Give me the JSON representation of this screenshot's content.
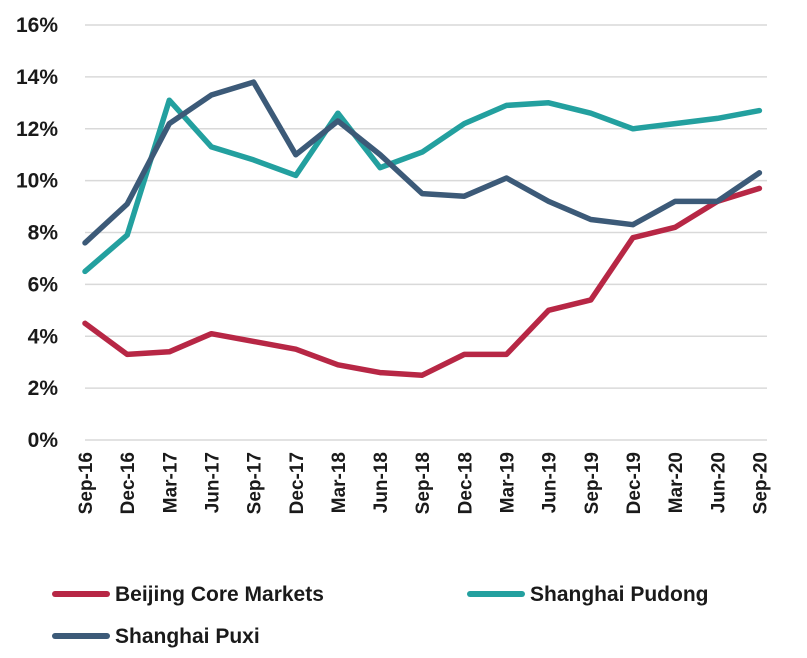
{
  "chart_data": {
    "type": "line",
    "title": "",
    "xlabel": "",
    "ylabel": "",
    "ylim": [
      0,
      16
    ],
    "yticks": [
      "0%",
      "2%",
      "4%",
      "6%",
      "8%",
      "10%",
      "12%",
      "14%",
      "16%"
    ],
    "grid": true,
    "legend_position": "bottom",
    "categories": [
      "Sep-16",
      "Dec-16",
      "Mar-17",
      "Jun-17",
      "Sep-17",
      "Dec-17",
      "Mar-18",
      "Jun-18",
      "Sep-18",
      "Dec-18",
      "Mar-19",
      "Jun-19",
      "Sep-19",
      "Dec-19",
      "Mar-20",
      "Jun-20",
      "Sep-20"
    ],
    "series": [
      {
        "name": "Beijing Core Markets",
        "color": "#b72745",
        "values": [
          4.5,
          3.3,
          3.4,
          4.1,
          3.8,
          3.5,
          2.9,
          2.6,
          2.5,
          3.3,
          3.3,
          5.0,
          5.4,
          7.8,
          8.2,
          9.2,
          9.7
        ]
      },
      {
        "name": "Shanghai Pudong",
        "color": "#23a09f",
        "values": [
          6.5,
          7.9,
          13.1,
          11.3,
          10.8,
          10.2,
          12.6,
          10.5,
          11.1,
          12.2,
          12.9,
          13.0,
          12.6,
          12.0,
          12.2,
          12.4,
          12.7
        ]
      },
      {
        "name": "Shanghai Puxi",
        "color": "#3c5a78",
        "values": [
          7.6,
          9.1,
          12.2,
          13.3,
          13.8,
          11.0,
          12.3,
          11.0,
          9.5,
          9.4,
          10.1,
          9.2,
          8.5,
          8.3,
          9.2,
          9.2,
          10.3
        ]
      }
    ]
  }
}
